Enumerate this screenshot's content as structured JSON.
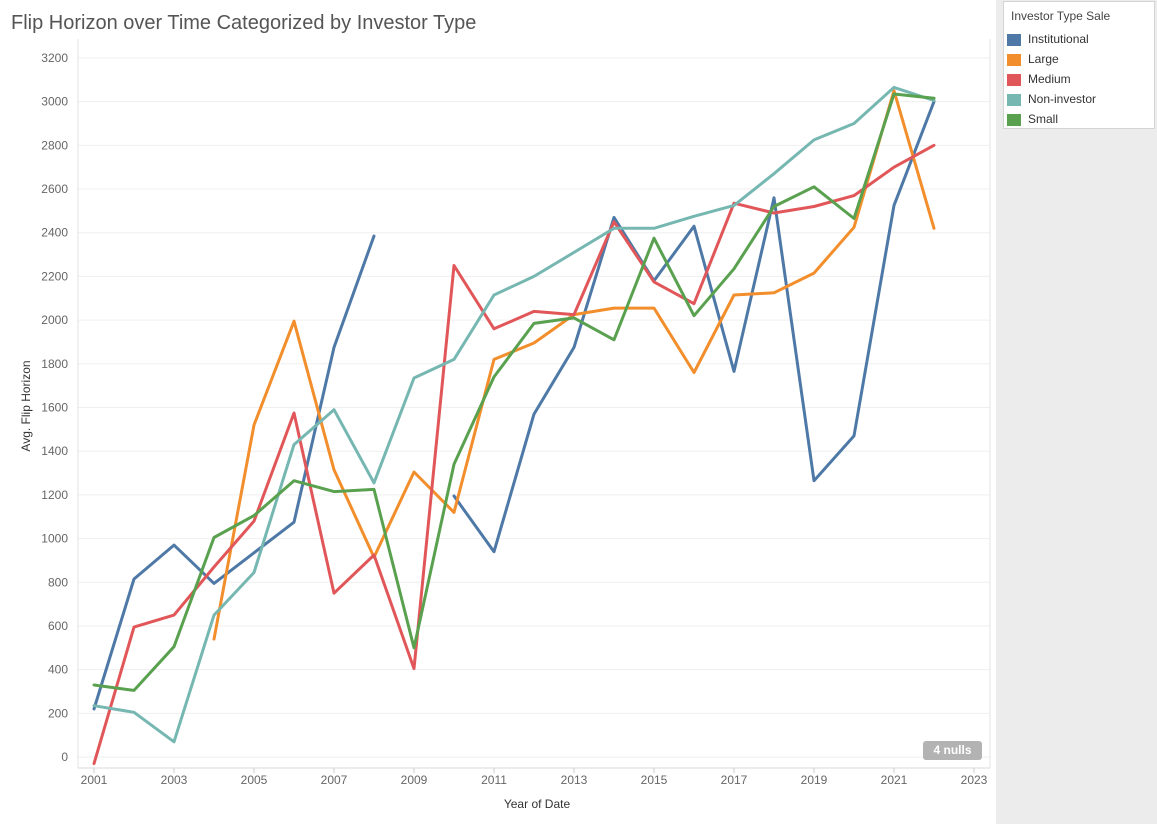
{
  "chart_data": {
    "type": "line",
    "title": "Flip Horizon over Time Categorized by Investor Type",
    "xlabel": "Year of Date",
    "ylabel": "Avg. Flip Horizon",
    "xlim": [
      2000.6,
      2023.4
    ],
    "ylim": [
      -50,
      3250
    ],
    "x_ticks": [
      2001,
      2003,
      2005,
      2007,
      2009,
      2011,
      2013,
      2015,
      2017,
      2019,
      2021,
      2023
    ],
    "y_ticks": [
      0,
      200,
      400,
      600,
      800,
      1000,
      1200,
      1400,
      1600,
      1800,
      2000,
      2200,
      2400,
      2600,
      2800,
      3000,
      3200
    ],
    "grid": true,
    "legend": {
      "title": "Investor Type Sale",
      "position": "top-right"
    },
    "null_indicator": "4 nulls",
    "series": [
      {
        "name": "Institutional",
        "color": "#4e79a7",
        "points": [
          [
            2001,
            220
          ],
          [
            2002,
            815
          ],
          [
            2003,
            970
          ],
          [
            2004,
            795
          ],
          [
            2005,
            935
          ],
          [
            2006,
            1075
          ],
          [
            2007,
            1875
          ],
          [
            2008,
            2385
          ],
          [
            2010,
            1195
          ],
          [
            2011,
            940
          ],
          [
            2012,
            1570
          ],
          [
            2013,
            1875
          ],
          [
            2014,
            2470
          ],
          [
            2015,
            2180
          ],
          [
            2016,
            2430
          ],
          [
            2017,
            1765
          ],
          [
            2018,
            2560
          ],
          [
            2019,
            1265
          ],
          [
            2020,
            1470
          ],
          [
            2021,
            2525
          ],
          [
            2022,
            3000
          ]
        ]
      },
      {
        "name": "Large",
        "color": "#f28e2b",
        "points": [
          [
            2004,
            540
          ],
          [
            2005,
            1520
          ],
          [
            2006,
            1995
          ],
          [
            2007,
            1315
          ],
          [
            2008,
            915
          ],
          [
            2009,
            1305
          ],
          [
            2010,
            1120
          ],
          [
            2011,
            1820
          ],
          [
            2012,
            1895
          ],
          [
            2013,
            2025
          ],
          [
            2014,
            2055
          ],
          [
            2015,
            2055
          ],
          [
            2016,
            1760
          ],
          [
            2017,
            2115
          ],
          [
            2018,
            2125
          ],
          [
            2019,
            2215
          ],
          [
            2020,
            2425
          ],
          [
            2021,
            3050
          ],
          [
            2022,
            2420
          ]
        ]
      },
      {
        "name": "Medium",
        "color": "#e15759",
        "points": [
          [
            2001,
            -30
          ],
          [
            2002,
            595
          ],
          [
            2003,
            650
          ],
          [
            2004,
            870
          ],
          [
            2005,
            1080
          ],
          [
            2006,
            1575
          ],
          [
            2007,
            750
          ],
          [
            2008,
            925
          ],
          [
            2009,
            405
          ],
          [
            2010,
            2250
          ],
          [
            2011,
            1960
          ],
          [
            2012,
            2040
          ],
          [
            2013,
            2025
          ],
          [
            2014,
            2450
          ],
          [
            2015,
            2175
          ],
          [
            2016,
            2075
          ],
          [
            2017,
            2535
          ],
          [
            2018,
            2490
          ],
          [
            2019,
            2520
          ],
          [
            2020,
            2570
          ],
          [
            2021,
            2700
          ],
          [
            2022,
            2800
          ]
        ]
      },
      {
        "name": "Non-investor",
        "color": "#76b7b2",
        "points": [
          [
            2001,
            235
          ],
          [
            2002,
            205
          ],
          [
            2003,
            70
          ],
          [
            2004,
            650
          ],
          [
            2005,
            845
          ],
          [
            2006,
            1430
          ],
          [
            2007,
            1590
          ],
          [
            2008,
            1255
          ],
          [
            2009,
            1735
          ],
          [
            2010,
            1820
          ],
          [
            2011,
            2115
          ],
          [
            2012,
            2200
          ],
          [
            2013,
            2310
          ],
          [
            2014,
            2420
          ],
          [
            2015,
            2420
          ],
          [
            2016,
            2475
          ],
          [
            2017,
            2525
          ],
          [
            2018,
            2670
          ],
          [
            2019,
            2825
          ],
          [
            2020,
            2900
          ],
          [
            2021,
            3065
          ],
          [
            2022,
            3005
          ]
        ]
      },
      {
        "name": "Small",
        "color": "#59a14f",
        "points": [
          [
            2001,
            330
          ],
          [
            2002,
            305
          ],
          [
            2003,
            505
          ],
          [
            2004,
            1005
          ],
          [
            2005,
            1105
          ],
          [
            2006,
            1265
          ],
          [
            2007,
            1215
          ],
          [
            2008,
            1225
          ],
          [
            2009,
            500
          ],
          [
            2010,
            1340
          ],
          [
            2011,
            1740
          ],
          [
            2012,
            1985
          ],
          [
            2013,
            2010
          ],
          [
            2014,
            1910
          ],
          [
            2015,
            2375
          ],
          [
            2016,
            2020
          ],
          [
            2017,
            2235
          ],
          [
            2018,
            2520
          ],
          [
            2019,
            2610
          ],
          [
            2020,
            2465
          ],
          [
            2021,
            3035
          ],
          [
            2022,
            3015
          ]
        ]
      }
    ]
  }
}
